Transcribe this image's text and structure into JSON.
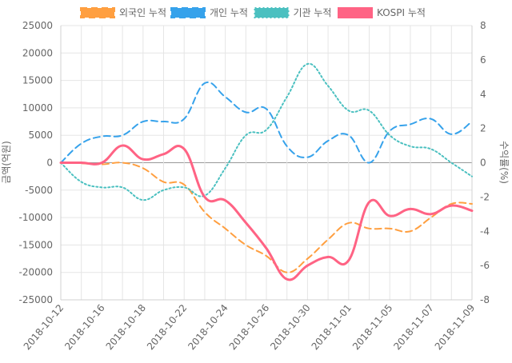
{
  "chart_data": {
    "type": "line",
    "x": [
      "2018-10-12",
      "2018-10-15",
      "2018-10-16",
      "2018-10-17",
      "2018-10-18",
      "2018-10-19",
      "2018-10-22",
      "2018-10-23",
      "2018-10-24",
      "2018-10-25",
      "2018-10-26",
      "2018-10-29",
      "2018-10-30",
      "2018-10-31",
      "2018-11-01",
      "2018-11-02",
      "2018-11-05",
      "2018-11-06",
      "2018-11-07",
      "2018-11-08",
      "2018-11-09"
    ],
    "x_tick_labels": [
      "2018-10-12",
      "2018-10-16",
      "2018-10-18",
      "2018-10-22",
      "2018-10-24",
      "2018-10-26",
      "2018-10-30",
      "2018-11-01",
      "2018-11-05",
      "2018-11-07",
      "2018-11-09"
    ],
    "ylabel_left": "금액(억원)",
    "ylabel_right": "수익률(%)",
    "ylim_left": [
      -25000,
      25000
    ],
    "ylim_right": [
      -8,
      8
    ],
    "yticks_left": [
      25000,
      20000,
      15000,
      10000,
      5000,
      0,
      -5000,
      -10000,
      -15000,
      -20000,
      -25000
    ],
    "yticks_right": [
      8,
      6,
      4,
      2,
      0,
      -2,
      -4,
      -6,
      -8
    ],
    "legend_position": "top",
    "grid": true,
    "series": [
      {
        "name": "외국인 누적",
        "axis": "left",
        "color": "#ff9f40",
        "style": "dashed",
        "values": [
          0,
          -100,
          -300,
          0,
          -1000,
          -3500,
          -4000,
          -9000,
          -12000,
          -15000,
          -17000,
          -20000,
          -17500,
          -14000,
          -11000,
          -12000,
          -12000,
          -12500,
          -10000,
          -7500,
          -7500
        ]
      },
      {
        "name": "개인 누적",
        "axis": "left",
        "color": "#36a2eb",
        "style": "dashed",
        "values": [
          0,
          3500,
          4800,
          5000,
          7500,
          7500,
          8000,
          14500,
          12000,
          9200,
          9800,
          3000,
          1000,
          4000,
          5000,
          0,
          5800,
          7000,
          8000,
          5200,
          7500
        ]
      },
      {
        "name": "기관 누적",
        "axis": "left",
        "color": "#4bc0c0",
        "style": "dotted",
        "values": [
          0,
          -3500,
          -4500,
          -4500,
          -6800,
          -5000,
          -4500,
          -6000,
          -1000,
          5000,
          6000,
          12000,
          18000,
          14000,
          9500,
          9500,
          5000,
          3000,
          2500,
          0,
          -2500
        ]
      },
      {
        "name": "KOSPI 누적",
        "axis": "right",
        "color": "#ff6384",
        "style": "solid",
        "values": [
          0,
          0,
          0,
          1.0,
          0.2,
          0.5,
          0.8,
          -2,
          -2.2,
          -3.5,
          -5,
          -6.8,
          -6,
          -5.5,
          -5.7,
          -2.3,
          -3.1,
          -2.7,
          -3,
          -2.5,
          -2.8
        ]
      }
    ]
  }
}
